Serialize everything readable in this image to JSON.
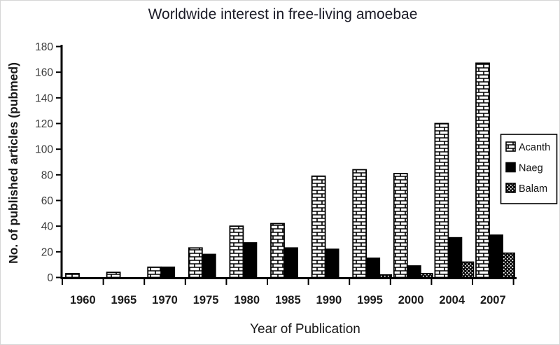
{
  "chart_data": {
    "type": "bar",
    "title": "Worldwide interest in free-living amoebae",
    "xlabel": "Year of Publication",
    "ylabel": "No. of published articles (pubmed)",
    "categories": [
      "1960",
      "1965",
      "1970",
      "1975",
      "1980",
      "1985",
      "1990",
      "1995",
      "2000",
      "2004",
      "2007"
    ],
    "series": [
      {
        "name": "Acanth",
        "pattern": "brick",
        "values": [
          3,
          4,
          8,
          23,
          40,
          42,
          79,
          84,
          81,
          120,
          167
        ]
      },
      {
        "name": "Naeg",
        "pattern": "solid-black",
        "values": [
          0,
          0,
          8,
          18,
          27,
          23,
          22,
          15,
          9,
          31,
          33
        ]
      },
      {
        "name": "Balam",
        "pattern": "white-dots",
        "values": [
          0,
          0,
          0,
          0,
          0,
          0,
          0,
          2,
          3,
          12,
          19
        ]
      }
    ],
    "ylim": [
      0,
      180
    ],
    "yticks": [
      0,
      20,
      40,
      60,
      80,
      100,
      120,
      140,
      160,
      180
    ],
    "grid": false,
    "legend_position": "right",
    "legend_labels": [
      "Acanth",
      "Naeg",
      "Balam"
    ],
    "colors": {
      "bar_outline": "#000000",
      "solid_bar": "#000000",
      "background": "#ffffff",
      "title_text": "#1c1c28",
      "axis_text": "#1a1a1a",
      "ytick_text": "#3a3a3a"
    }
  }
}
